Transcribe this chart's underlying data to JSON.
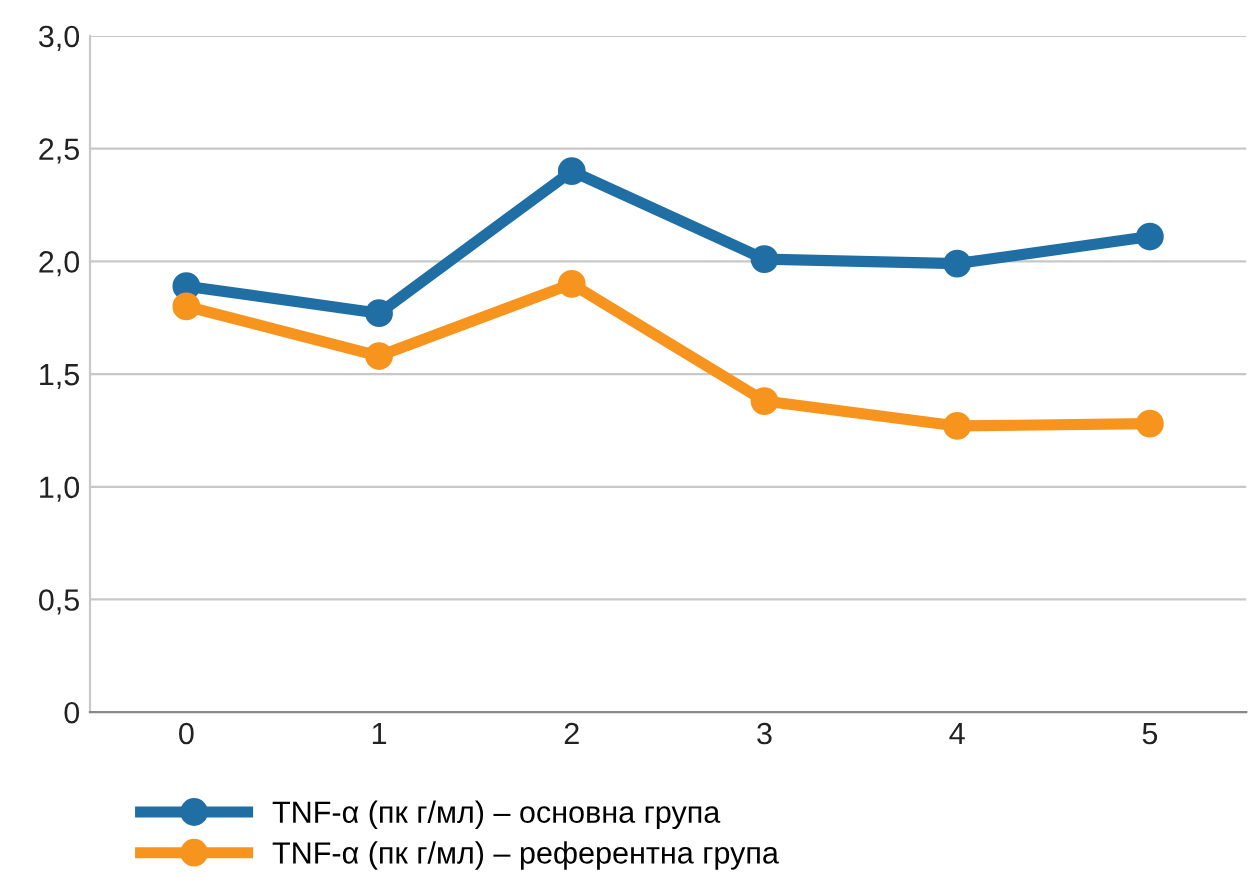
{
  "chart_data": {
    "type": "line",
    "categories": [
      "0",
      "1",
      "2",
      "3",
      "4",
      "5"
    ],
    "series": [
      {
        "name": "TNF-α (пк г/мл) – основна група",
        "color": "#1f6fa5",
        "values": [
          1.89,
          1.77,
          2.4,
          2.01,
          1.99,
          2.11
        ]
      },
      {
        "name": "TNF-α (пк г/мл) – референтна група",
        "color": "#f7941d",
        "values": [
          1.8,
          1.58,
          1.9,
          1.38,
          1.27,
          1.28
        ]
      }
    ],
    "ylim": [
      0,
      3
    ],
    "yticks": [
      0,
      {
        "value": 0.5,
        "label": "0,5"
      },
      {
        "value": 1,
        "label": "1,0"
      },
      {
        "value": 1.5,
        "label": "1,5"
      },
      {
        "value": 2,
        "label": "2,0"
      },
      {
        "value": 2.5,
        "label": "2,5"
      },
      {
        "value": 3,
        "label": "3,0"
      }
    ],
    "grid": "y",
    "legend": "bottom",
    "marker": "circle",
    "line_style": "solid"
  }
}
